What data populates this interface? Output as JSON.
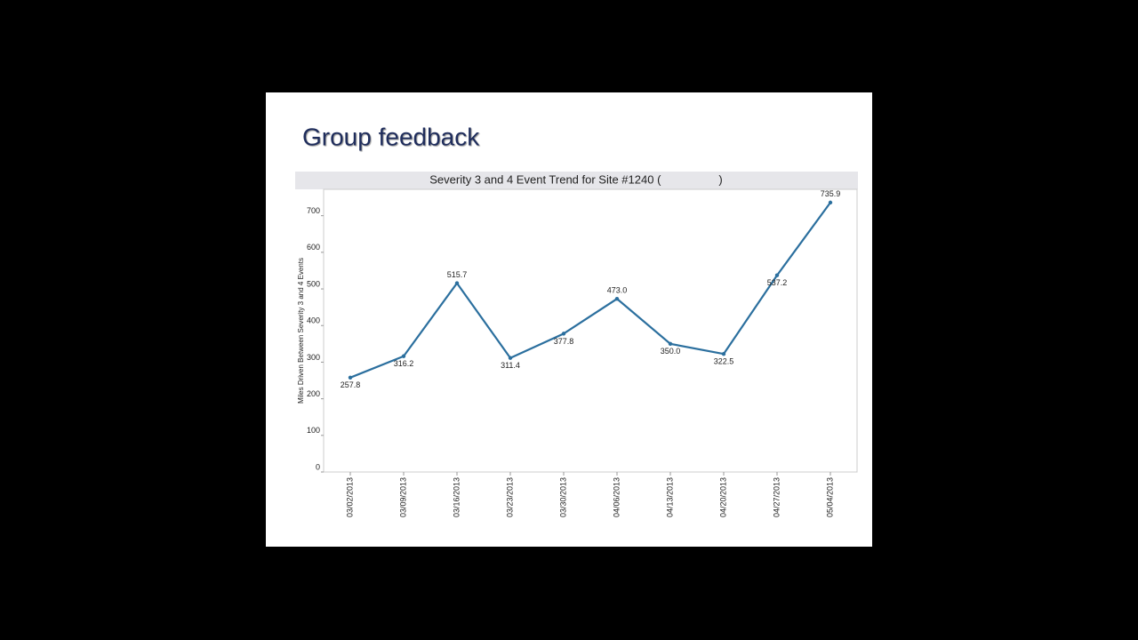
{
  "slide_title": "Group feedback",
  "chart_data": {
    "type": "line",
    "title": "Severity 3 and 4 Event Trend for Site #1240 (     )",
    "y_label": "Miles Driven Between Severity 3 and 4 Events",
    "categories": [
      "03/02/2013",
      "03/09/2013",
      "03/16/2013",
      "03/23/2013",
      "03/30/2013",
      "04/06/2013",
      "04/13/2013",
      "04/20/2013",
      "04/27/2013",
      "05/04/2013"
    ],
    "values": [
      257.8,
      316.2,
      515.7,
      311.4,
      377.8,
      473.0,
      350.0,
      322.5,
      537.2,
      735.9
    ],
    "value_labels": [
      "257.8",
      "316.2",
      "515.7",
      "311.4",
      "377.8",
      "473.0",
      "350.0",
      "322.5",
      "537.2",
      "735.9"
    ],
    "color": "#2b6f9e",
    "ylim": [
      0,
      772
    ],
    "yticks": [
      0,
      100,
      200,
      300,
      400,
      500,
      600,
      700
    ],
    "grid": false
  }
}
